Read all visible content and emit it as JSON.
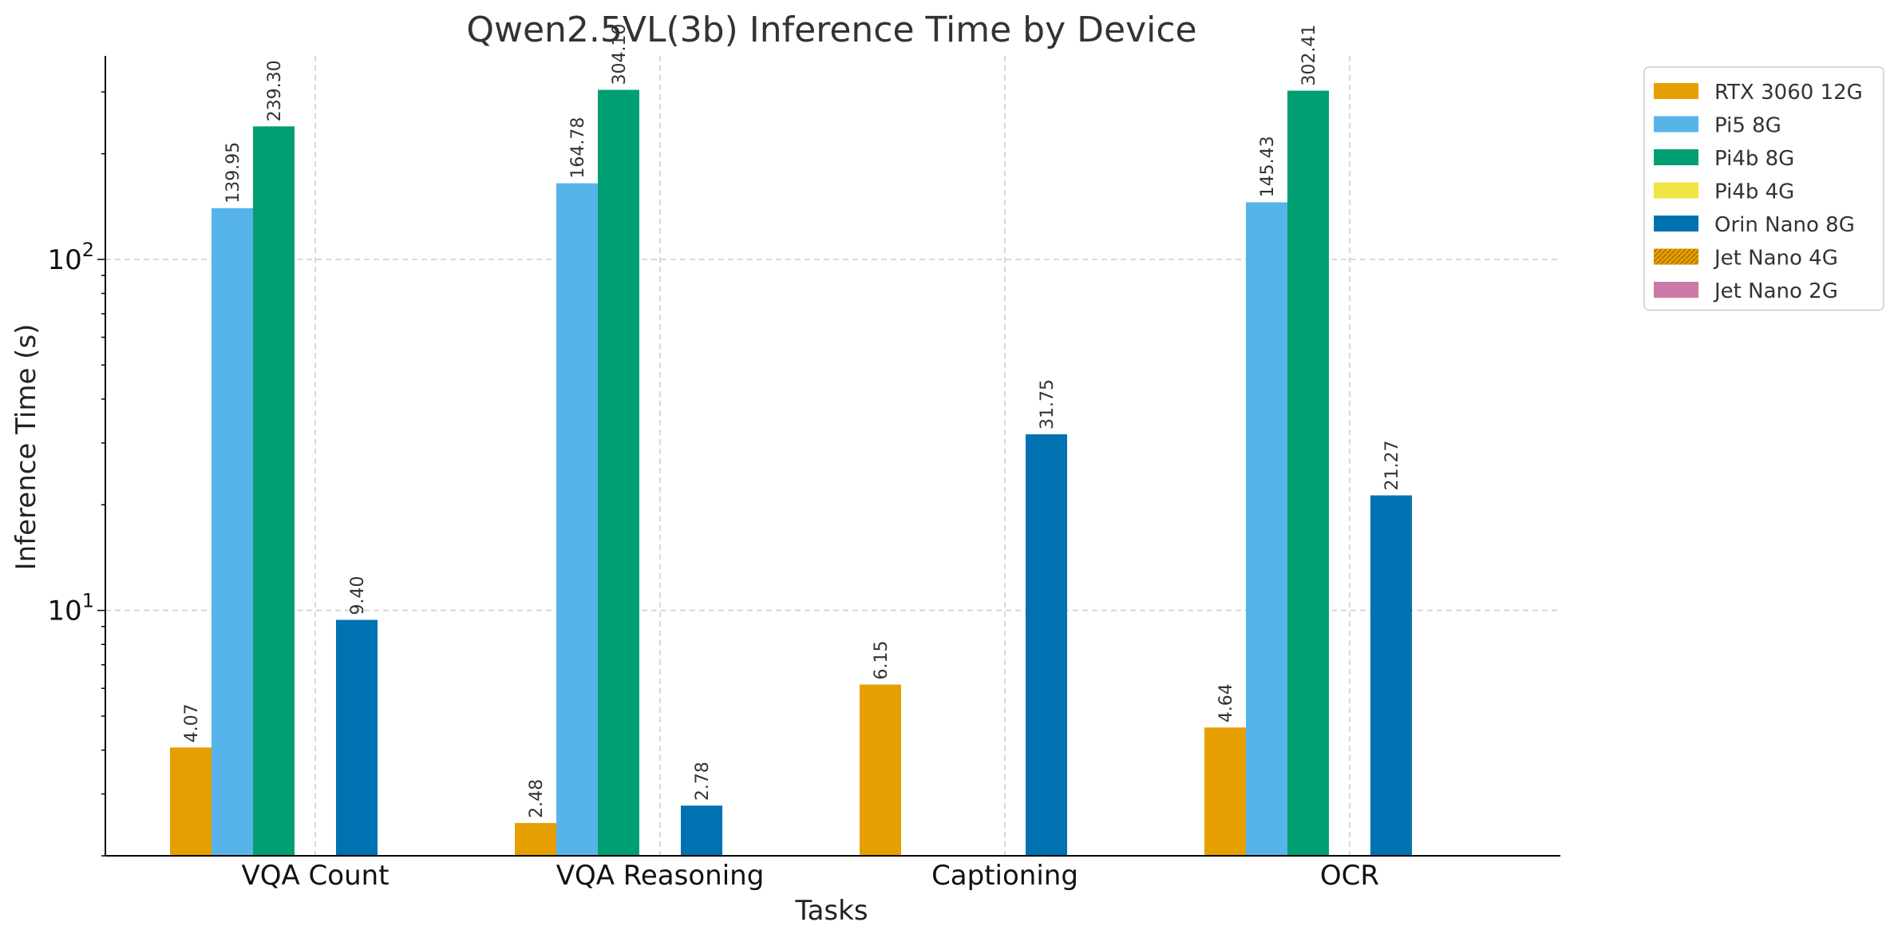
{
  "chart_data": {
    "type": "bar",
    "title": "Qwen2.5VL(3b) Inference Time by Device",
    "xlabel": "Tasks",
    "ylabel": "Inference Time (s)",
    "yscale": "log",
    "ylim": [
      2.0,
      380
    ],
    "yticks": [
      {
        "value": 10,
        "base": "10",
        "exp": "1"
      },
      {
        "value": 100,
        "base": "10",
        "exp": "2"
      }
    ],
    "grid": true,
    "legend_position": "outside-top-right",
    "categories": [
      "VQA Count",
      "VQA Reasoning",
      "Captioning",
      "OCR"
    ],
    "series": [
      {
        "name": "RTX 3060 12G",
        "color": "#E69F00",
        "pattern": false,
        "values": [
          4.07,
          2.48,
          6.15,
          4.64
        ],
        "labels": [
          "4.07",
          "2.48",
          "6.15",
          "4.64"
        ]
      },
      {
        "name": "Pi5 8G",
        "color": "#56B4E9",
        "pattern": false,
        "values": [
          139.95,
          164.78,
          null,
          145.43
        ],
        "labels": [
          "139.95",
          "164.78",
          "",
          "145.43"
        ]
      },
      {
        "name": "Pi4b 8G",
        "color": "#009E73",
        "pattern": false,
        "values": [
          239.3,
          304.1,
          null,
          302.41
        ],
        "labels": [
          "239.30",
          "304.10",
          "",
          "302.41"
        ]
      },
      {
        "name": "Pi4b 4G",
        "color": "#F0E442",
        "pattern": false,
        "values": [
          null,
          null,
          null,
          null
        ],
        "labels": [
          "",
          "",
          "",
          ""
        ]
      },
      {
        "name": "Orin Nano 8G",
        "color": "#0072B2",
        "pattern": false,
        "values": [
          9.4,
          2.78,
          31.75,
          21.27
        ],
        "labels": [
          "9.40",
          "2.78",
          "31.75",
          "21.27"
        ]
      },
      {
        "name": "Jet Nano 4G",
        "color": "#E69F00",
        "pattern": true,
        "values": [
          null,
          null,
          null,
          null
        ],
        "labels": [
          "",
          "",
          "",
          ""
        ]
      },
      {
        "name": "Jet Nano 2G",
        "color": "#CC79A7",
        "pattern": false,
        "values": [
          null,
          null,
          null,
          null
        ],
        "labels": [
          "",
          "",
          "",
          ""
        ]
      }
    ]
  }
}
